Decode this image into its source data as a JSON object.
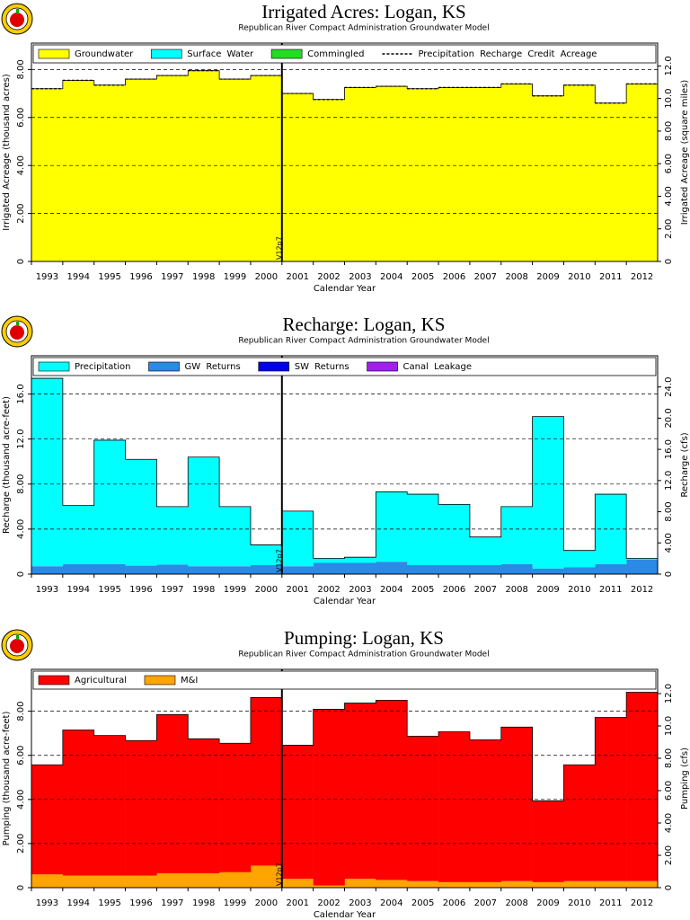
{
  "chart_data": [
    {
      "type": "bar",
      "stacked": true,
      "title": "Irrigated Acres: Logan, KS",
      "subtitle": "Republican River Compact Administration Groundwater Model",
      "xlabel": "Calendar Year",
      "ylabel": "Irrigated Acreage (thousand acres)",
      "y2label": "Irrigated Acreage (square miles)",
      "categories": [
        "1993",
        "1994",
        "1995",
        "1996",
        "1997",
        "1998",
        "1999",
        "2000",
        "2001",
        "2002",
        "2003",
        "2004",
        "2005",
        "2006",
        "2007",
        "2008",
        "2009",
        "2010",
        "2011",
        "2012"
      ],
      "series": [
        {
          "name": "Groundwater",
          "color": "#ffff00",
          "values": [
            7.2,
            7.55,
            7.35,
            7.6,
            7.75,
            7.95,
            7.6,
            7.75,
            7.0,
            6.75,
            7.25,
            7.3,
            7.2,
            7.25,
            7.25,
            7.4,
            6.9,
            7.35,
            6.6,
            7.4
          ]
        },
        {
          "name": "Surface Water",
          "color": "#00ffff",
          "values": [
            0,
            0,
            0,
            0,
            0,
            0,
            0,
            0,
            0,
            0,
            0,
            0,
            0,
            0,
            0,
            0,
            0,
            0,
            0,
            0
          ]
        },
        {
          "name": "Commingled",
          "color": "#22dd22",
          "values": [
            0,
            0,
            0,
            0,
            0,
            0,
            0,
            0,
            0,
            0,
            0,
            0,
            0,
            0,
            0,
            0,
            0,
            0,
            0,
            0
          ]
        },
        {
          "name": "Precipitation Recharge Credit Acreage",
          "type": "line",
          "style": "dashed",
          "color": "#000000",
          "values": [
            7.2,
            7.55,
            7.35,
            7.6,
            7.75,
            7.95,
            7.6,
            7.75,
            7.0,
            6.75,
            7.25,
            7.3,
            7.2,
            7.25,
            7.25,
            7.4,
            6.9,
            7.35,
            6.6,
            7.4
          ]
        }
      ],
      "ylim": [
        0,
        9.1
      ],
      "yticks": [
        0,
        {
          "value": 2,
          "label": "2.00"
        },
        {
          "value": 4,
          "label": "4.00"
        },
        {
          "value": 6,
          "label": "6.00"
        },
        {
          "value": 8,
          "label": "8.00"
        }
      ],
      "y2lim": [
        0,
        13.4
      ],
      "y2ticks": [
        0,
        {
          "value": 2,
          "label": "2.00"
        },
        {
          "value": 4,
          "label": "4.00"
        },
        {
          "value": 6,
          "label": "6.00"
        },
        {
          "value": 8,
          "label": "8.00"
        },
        {
          "value": 10,
          "label": "10.0"
        },
        {
          "value": 12,
          "label": "12.0"
        }
      ],
      "grid": true,
      "annotation": {
        "text": "V12p7",
        "after": "2000"
      }
    },
    {
      "type": "bar",
      "stacked": true,
      "title": "Recharge: Logan, KS",
      "subtitle": "Republican River Compact Administration Groundwater Model",
      "xlabel": "Calendar Year",
      "ylabel": "Recharge (thousand acre-feet)",
      "y2label": "Recharge (cfs)",
      "categories": [
        "1993",
        "1994",
        "1995",
        "1996",
        "1997",
        "1998",
        "1999",
        "2000",
        "2001",
        "2002",
        "2003",
        "2004",
        "2005",
        "2006",
        "2007",
        "2008",
        "2009",
        "2010",
        "2011",
        "2012"
      ],
      "series": [
        {
          "name": "GW Returns",
          "color": "#2a8ae6",
          "values": [
            0.7,
            0.9,
            0.9,
            0.75,
            0.85,
            0.7,
            0.7,
            0.8,
            0.7,
            1.0,
            1.0,
            1.1,
            0.8,
            0.8,
            0.8,
            0.9,
            0.5,
            0.6,
            0.9,
            1.3
          ]
        },
        {
          "name": "SW Returns",
          "color": "#0000ee",
          "values": [
            0,
            0,
            0,
            0,
            0,
            0,
            0,
            0,
            0,
            0,
            0,
            0,
            0,
            0,
            0,
            0,
            0,
            0,
            0,
            0
          ]
        },
        {
          "name": "Canal Leakage",
          "color": "#a020f0",
          "values": [
            0,
            0,
            0,
            0,
            0,
            0,
            0,
            0,
            0,
            0,
            0,
            0,
            0,
            0,
            0,
            0,
            0,
            0,
            0,
            0
          ]
        },
        {
          "name": "Precipitation",
          "color": "#00ffff",
          "values": [
            16.7,
            5.2,
            11.0,
            9.45,
            5.15,
            9.7,
            5.3,
            1.8,
            4.9,
            0.4,
            0.5,
            6.2,
            6.3,
            5.4,
            2.5,
            5.1,
            13.5,
            1.5,
            6.2,
            0.1
          ]
        }
      ],
      "legend_order": [
        "Precipitation",
        "GW Returns",
        "SW Returns",
        "Canal Leakage"
      ],
      "ylim": [
        0,
        19.4
      ],
      "yticks": [
        0,
        {
          "value": 4,
          "label": "4.00"
        },
        {
          "value": 8,
          "label": "8.00"
        },
        {
          "value": 12,
          "label": "12.0"
        },
        {
          "value": 16,
          "label": "16.0"
        }
      ],
      "y2lim": [
        0,
        28
      ],
      "y2ticks": [
        0,
        {
          "value": 4,
          "label": "4.00"
        },
        {
          "value": 8,
          "label": "8.00"
        },
        {
          "value": 12,
          "label": "12.0"
        },
        {
          "value": 16,
          "label": "16.0"
        },
        {
          "value": 20,
          "label": "20.0"
        },
        {
          "value": 24,
          "label": "24.0"
        }
      ],
      "grid": true,
      "annotation": {
        "text": "V12p7",
        "after": "2000"
      }
    },
    {
      "type": "bar",
      "stacked": true,
      "title": "Pumping: Logan, KS",
      "subtitle": "Republican River Compact Administration Groundwater Model",
      "xlabel": "Calendar Year",
      "ylabel": "Pumping (thousand acre-feet)",
      "y2label": "Pumping (cfs)",
      "categories": [
        "1993",
        "1994",
        "1995",
        "1996",
        "1997",
        "1998",
        "1999",
        "2000",
        "2001",
        "2002",
        "2003",
        "2004",
        "2005",
        "2006",
        "2007",
        "2008",
        "2009",
        "2010",
        "2011",
        "2012"
      ],
      "series": [
        {
          "name": "M&I",
          "color": "#ffa500",
          "values": [
            0.6,
            0.55,
            0.55,
            0.55,
            0.65,
            0.65,
            0.7,
            1.0,
            0.4,
            0.1,
            0.4,
            0.35,
            0.3,
            0.25,
            0.25,
            0.3,
            0.25,
            0.3,
            0.3,
            0.3
          ]
        },
        {
          "name": "Agricultural",
          "color": "#ff0000",
          "values": [
            4.97,
            6.6,
            6.35,
            6.12,
            7.2,
            6.1,
            5.85,
            7.62,
            6.06,
            7.99,
            7.97,
            8.15,
            6.57,
            6.82,
            6.45,
            6.98,
            3.69,
            5.27,
            7.42,
            8.56
          ]
        }
      ],
      "legend_order": [
        "Agricultural",
        "M&I"
      ],
      "ylim": [
        0,
        9.9
      ],
      "yticks": [
        0,
        {
          "value": 2,
          "label": "2.00"
        },
        {
          "value": 4,
          "label": "4.00"
        },
        {
          "value": 6,
          "label": "6.00"
        },
        {
          "value": 8,
          "label": "8.00"
        }
      ],
      "y2lim": [
        0,
        13.5
      ],
      "y2ticks": [
        0,
        {
          "value": 2,
          "label": "2.00"
        },
        {
          "value": 4,
          "label": "4.00"
        },
        {
          "value": 6,
          "label": "6.00"
        },
        {
          "value": 8,
          "label": "8.00"
        },
        {
          "value": 10,
          "label": "10.0"
        },
        {
          "value": 12,
          "label": "12.0"
        }
      ],
      "grid": true,
      "annotation": {
        "text": "V12p7",
        "after": "2000"
      }
    }
  ]
}
